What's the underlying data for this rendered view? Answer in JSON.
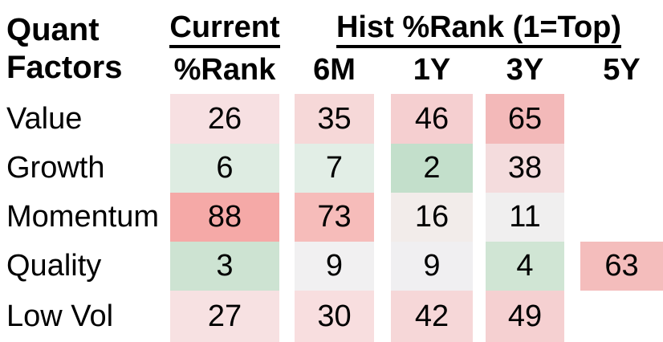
{
  "title": {
    "line1": "Quant",
    "line2": "Factors"
  },
  "header": {
    "current_group": "Current",
    "hist_group": "Hist %Rank (1=Top)",
    "columns": [
      "%Rank",
      "6M",
      "1Y",
      "3Y",
      "5Y"
    ]
  },
  "color_scale": {
    "low_green": "#c3dfcb",
    "mid_white": "#f1f0f1",
    "high_red": "#f5a9a7",
    "note": "1=Top"
  },
  "rows": [
    {
      "label": "Value",
      "cells": [
        {
          "value": "26",
          "color": "#f7e0e2"
        },
        {
          "value": "35",
          "color": "#f6d8d8"
        },
        {
          "value": "46",
          "color": "#f5cfd0"
        },
        {
          "value": "65",
          "color": "#f3b9b9"
        },
        {
          "value": null,
          "color": null
        }
      ]
    },
    {
      "label": "Growth",
      "cells": [
        {
          "value": "6",
          "color": "#deece2"
        },
        {
          "value": "7",
          "color": "#e2eee6"
        },
        {
          "value": "2",
          "color": "#c3dfcb"
        },
        {
          "value": "38",
          "color": "#f4dcdd"
        },
        {
          "value": null,
          "color": null
        }
      ]
    },
    {
      "label": "Momentum",
      "cells": [
        {
          "value": "88",
          "color": "#f5a9a7"
        },
        {
          "value": "73",
          "color": "#f6bcba"
        },
        {
          "value": "16",
          "color": "#f2ecea"
        },
        {
          "value": "11",
          "color": "#f0efef"
        },
        {
          "value": null,
          "color": null
        }
      ]
    },
    {
      "label": "Quality",
      "cells": [
        {
          "value": "3",
          "color": "#cde3d2"
        },
        {
          "value": "9",
          "color": "#f1f0f1"
        },
        {
          "value": "9",
          "color": "#f0eff1"
        },
        {
          "value": "4",
          "color": "#d0e5d4"
        },
        {
          "value": "63",
          "color": "#f4bdbc"
        }
      ]
    },
    {
      "label": "Low Vol",
      "cells": [
        {
          "value": "27",
          "color": "#f7e1e2"
        },
        {
          "value": "30",
          "color": "#f8dedf"
        },
        {
          "value": "42",
          "color": "#f6d7d8"
        },
        {
          "value": "49",
          "color": "#f5d0d1"
        },
        {
          "value": null,
          "color": null
        }
      ]
    }
  ],
  "chart_data": {
    "type": "heatmap",
    "title": "Quant Factors",
    "row_labels": [
      "Value",
      "Growth",
      "Momentum",
      "Quality",
      "Low Vol"
    ],
    "columns": [
      "%Rank",
      "6M",
      "1Y",
      "3Y",
      "5Y"
    ],
    "column_groups": [
      {
        "label": "Current",
        "columns": [
          "%Rank"
        ]
      },
      {
        "label": "Hist %Rank (1=Top)",
        "columns": [
          "6M",
          "1Y",
          "3Y",
          "5Y"
        ]
      }
    ],
    "values": [
      [
        26,
        35,
        46,
        65,
        null
      ],
      [
        6,
        7,
        2,
        38,
        null
      ],
      [
        88,
        73,
        16,
        11,
        null
      ],
      [
        3,
        9,
        9,
        4,
        63
      ],
      [
        27,
        30,
        42,
        49,
        null
      ]
    ],
    "scale": "percentile rank, 1 = top; green = low rank (good), red = high rank",
    "legend_position": "none",
    "grid": false
  }
}
